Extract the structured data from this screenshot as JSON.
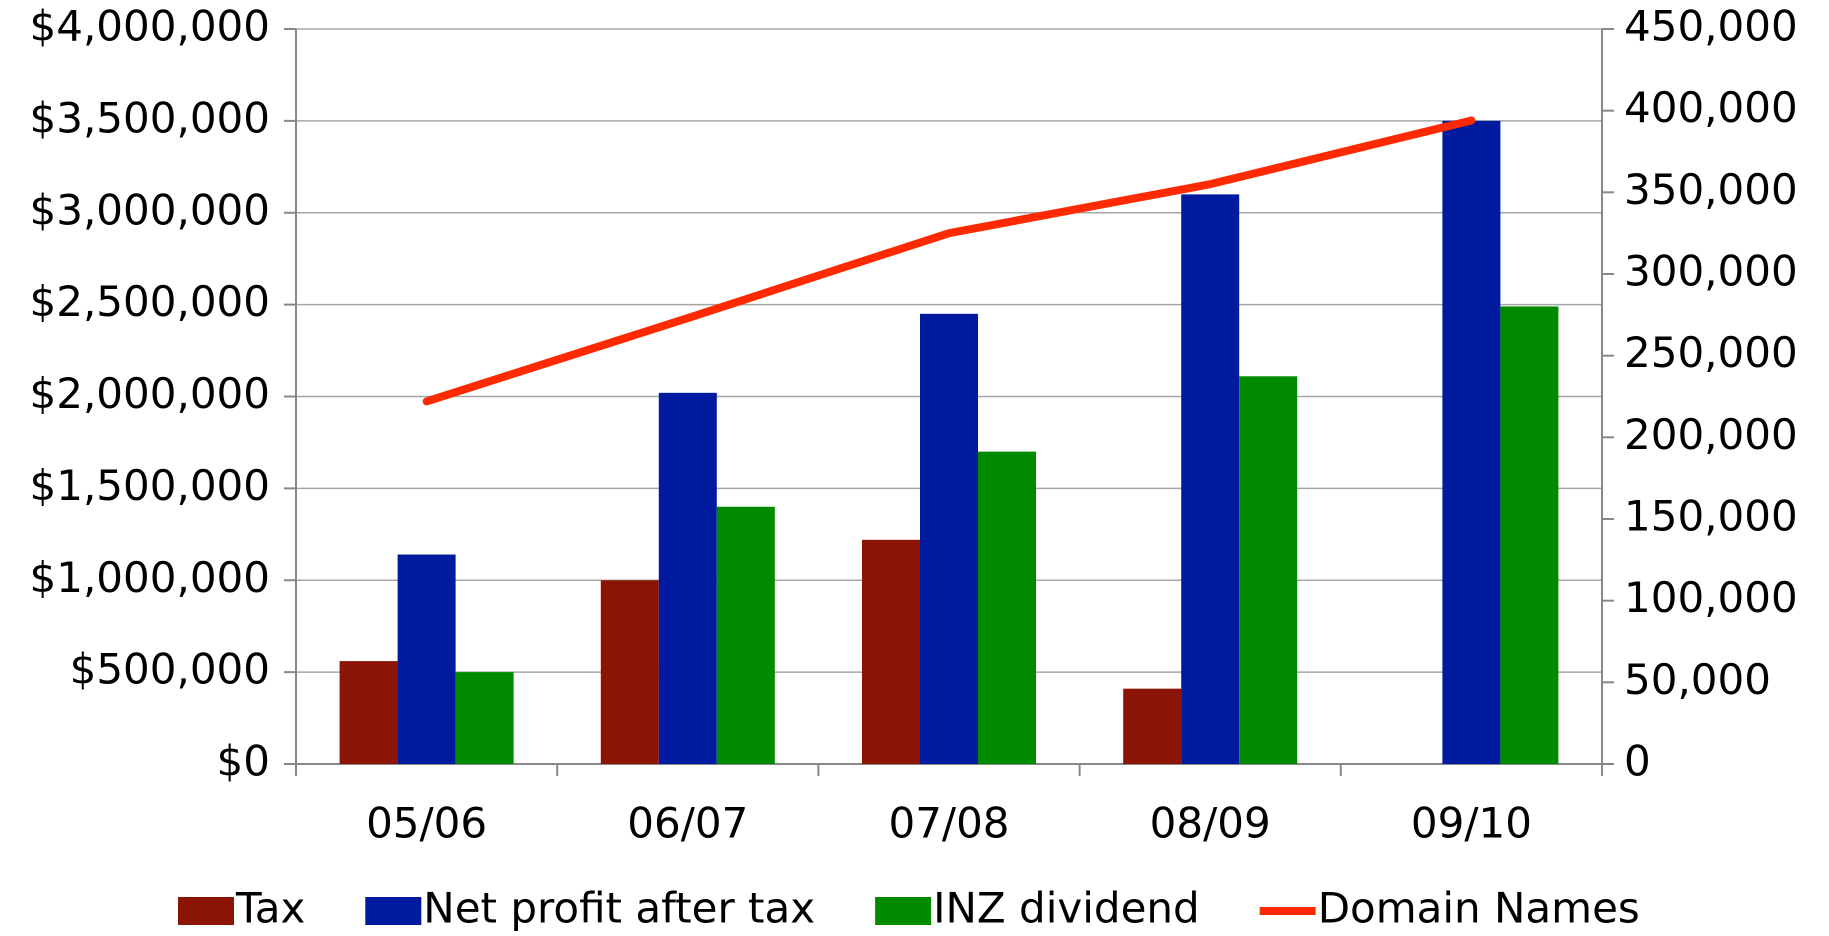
{
  "chart_data": {
    "type": "bar",
    "categories": [
      "05/06",
      "06/07",
      "07/08",
      "08/09",
      "09/10"
    ],
    "series": [
      {
        "name": "Tax",
        "color": "#8b1405",
        "values": [
          560000,
          1000000,
          1220000,
          410000,
          null
        ]
      },
      {
        "name": "Net profit after tax",
        "color": "#001aa0",
        "values": [
          1140000,
          2020000,
          2450000,
          3100000,
          3500000
        ]
      },
      {
        "name": "INZ dividend",
        "color": "#008a00",
        "values": [
          500000,
          1400000,
          1700000,
          2110000,
          2490000
        ]
      },
      {
        "name": "Domain Names",
        "color": "#ff2a00",
        "type": "line",
        "axis": "y2",
        "values": [
          222000,
          273000,
          325000,
          355000,
          394000
        ]
      }
    ],
    "ylim": [
      0,
      4000000
    ],
    "yticks": [
      {
        "value": 0,
        "label": "$0"
      },
      {
        "value": 500000,
        "label": "$500,000"
      },
      {
        "value": 1000000,
        "label": "$1,000,000"
      },
      {
        "value": 1500000,
        "label": "$1,500,000"
      },
      {
        "value": 2000000,
        "label": "$2,000,000"
      },
      {
        "value": 2500000,
        "label": "$2,500,000"
      },
      {
        "value": 3000000,
        "label": "$3,000,000"
      },
      {
        "value": 3500000,
        "label": "$3,500,000"
      },
      {
        "value": 4000000,
        "label": "$4,000,000"
      }
    ],
    "y2lim": [
      0,
      450000
    ],
    "y2ticks": [
      0,
      {
        "value": 50000,
        "label": "50,000"
      },
      {
        "value": 100000,
        "label": "100,000"
      },
      {
        "value": 150000,
        "label": "150,000"
      },
      {
        "value": 200000,
        "label": "200,000"
      },
      {
        "value": 250000,
        "label": "250,000"
      },
      {
        "value": 300000,
        "label": "300,000"
      },
      {
        "value": 350000,
        "label": "350,000"
      },
      {
        "value": 400000,
        "label": "400,000"
      },
      {
        "value": 450000,
        "label": "450,000"
      }
    ],
    "grid": true,
    "legend": "bottom"
  }
}
